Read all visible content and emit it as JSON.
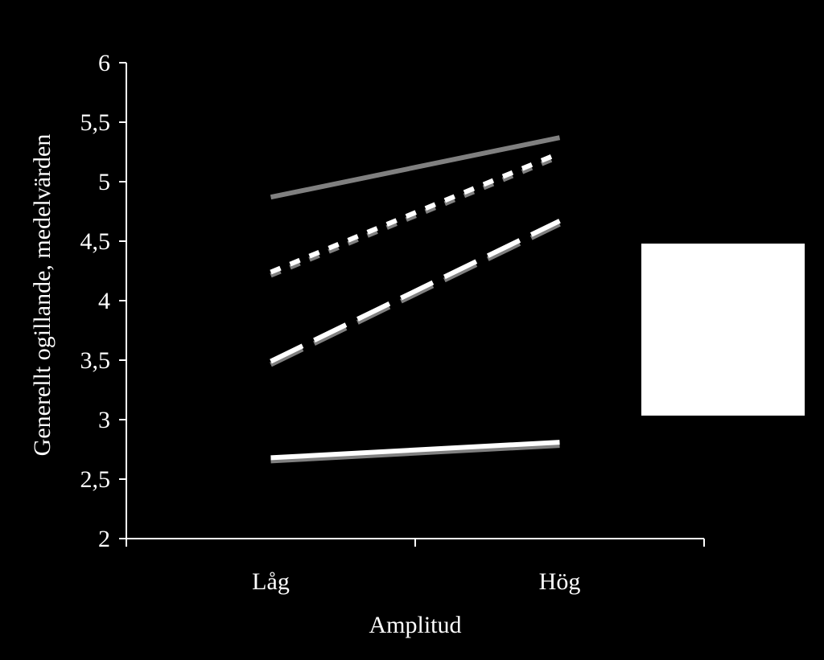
{
  "chart_data": {
    "type": "line",
    "title": "",
    "xlabel": "Amplitud",
    "ylabel": "Generellt ogillande, medelvärden",
    "categories": [
      "Låg",
      "Hög"
    ],
    "ylim": [
      2,
      6
    ],
    "yticks": [
      "2",
      "2,5",
      "3",
      "3,5",
      "4",
      "4,5",
      "5",
      "5,5",
      "6"
    ],
    "ytick_values": [
      2,
      2.5,
      3,
      3.5,
      4,
      4.5,
      5,
      5.5,
      6
    ],
    "grid": false,
    "legend": "right (blank box)",
    "series": [
      {
        "values": [
          4.87,
          5.37
        ],
        "style": "solid",
        "color": "#808080",
        "shadow": false
      },
      {
        "values": [
          4.24,
          5.24
        ],
        "style": "dotted",
        "color": "#ffffff",
        "shadow": true
      },
      {
        "values": [
          3.49,
          4.67
        ],
        "style": "dashed",
        "color": "#ffffff",
        "shadow": true
      },
      {
        "values": [
          2.68,
          2.81
        ],
        "style": "solid",
        "color": "#ffffff",
        "shadow": true
      }
    ]
  }
}
